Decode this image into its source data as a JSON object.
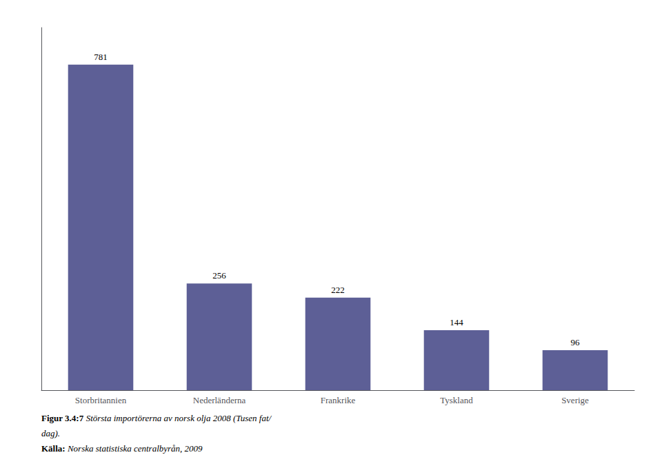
{
  "chart_data": {
    "type": "bar",
    "categories": [
      "Storbritannien",
      "Nederländerna",
      "Frankrike",
      "Tyskland",
      "Sverige"
    ],
    "values": [
      781,
      256,
      222,
      144,
      96
    ],
    "color": "#5d5f96",
    "ylim": [
      0,
      870
    ],
    "grid": false,
    "data_labels": true,
    "tick_labels": "x",
    "annotations": [
      "Figur 3.4:7",
      "Största importörerna av norsk olja 2008 (Tusen fat/",
      "dag).",
      "Källa:",
      "Norska statistiska centralbyrån, 2009"
    ]
  }
}
